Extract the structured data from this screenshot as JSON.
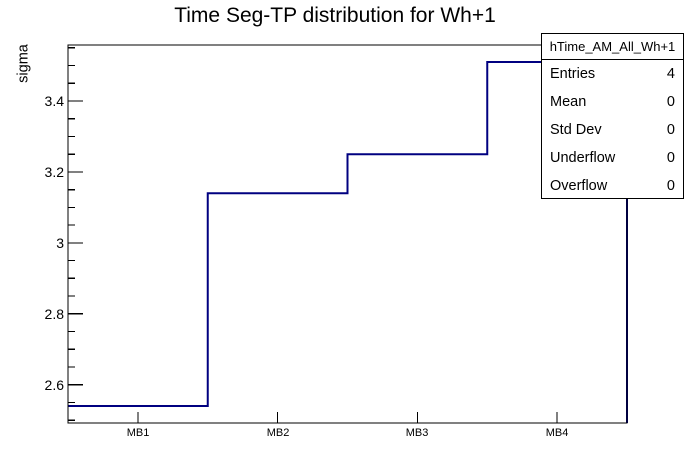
{
  "chart_data": {
    "type": "bar",
    "style": "step-histogram",
    "title": "Time Seg-TP distribution for Wh+1",
    "xlabel": "",
    "ylabel": "sigma",
    "categories": [
      "MB1",
      "MB2",
      "MB3",
      "MB4"
    ],
    "values": [
      2.54,
      3.14,
      3.25,
      3.51
    ],
    "ylim": [
      2.492,
      3.558
    ],
    "y_major_ticks": [
      2.6,
      2.8,
      3.0,
      3.2,
      3.4
    ],
    "y_minor_step": 0.05,
    "grid": "off",
    "line_color": "#000080",
    "frame_color": "#000000"
  },
  "y_axis": {
    "label": "sigma",
    "tick_labels": [
      "3.4",
      "3.2",
      "3",
      "2.8",
      "2.6"
    ]
  },
  "x_axis": {
    "tick_labels": [
      "MB1",
      "MB2",
      "MB3",
      "MB4"
    ]
  },
  "stats_box": {
    "title": "hTime_AM_All_Wh+1",
    "rows": [
      {
        "label": "Entries",
        "value": "4"
      },
      {
        "label": "Mean",
        "value": "0"
      },
      {
        "label": "Std Dev",
        "value": "0"
      },
      {
        "label": "Underflow",
        "value": "0"
      },
      {
        "label": "Overflow",
        "value": "0"
      }
    ]
  }
}
